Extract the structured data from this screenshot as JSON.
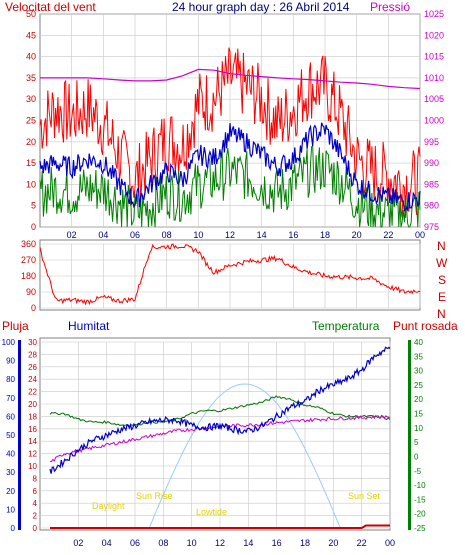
{
  "title": "24 hour graph day : 26 Abril 2014",
  "colors": {
    "wind_gust": "#ff0000",
    "wind_avg": "#0000cc",
    "wind_low": "#008000",
    "pressure": "#cc00cc",
    "direction": "#ff0000",
    "rain": "#cc0000",
    "humidity": "#0000cc",
    "temperature": "#007000",
    "dewpoint": "#cc00cc",
    "sun": "#99ccff",
    "axis_left_top": "#cc0000",
    "axis_right_top": "#cc00cc",
    "axis_right_bottom": "#008000",
    "sun_label": "#e6d000",
    "grid": "#c8c8c8"
  },
  "chart_data": [
    {
      "type": "line",
      "name": "wind-pressure",
      "title": "24 hour graph day : 26 Abril 2014",
      "ylabel": "Velocitat del vent",
      "y2label": "Pressió",
      "x_ticks": [
        "02",
        "04",
        "06",
        "08",
        "10",
        "12",
        "14",
        "16",
        "18",
        "20",
        "22",
        "00"
      ],
      "x_range_hours": [
        0,
        24
      ],
      "ylim": [
        0,
        50
      ],
      "yticks": [
        0,
        5,
        10,
        15,
        20,
        25,
        30,
        35,
        40,
        45,
        50
      ],
      "y2lim": [
        975,
        1025
      ],
      "y2ticks": [
        975,
        980,
        985,
        990,
        995,
        1000,
        1005,
        1010,
        1015,
        1020,
        1025
      ],
      "series": [
        {
          "name": "Velocitat del vent",
          "color": "#0000cc",
          "x": [
            0,
            1,
            2,
            3,
            4,
            5,
            6,
            7,
            8,
            9,
            10,
            11,
            12,
            13,
            14,
            15,
            16,
            17,
            18,
            19,
            20,
            21,
            22,
            23,
            24
          ],
          "y": [
            14,
            15,
            14,
            16,
            15,
            10,
            6,
            10,
            13,
            11,
            17,
            16,
            22,
            20,
            17,
            14,
            16,
            21,
            23,
            17,
            10,
            8,
            7,
            6,
            7
          ]
        },
        {
          "name": "Ràfega",
          "color": "#ff0000",
          "x": [
            0,
            1,
            2,
            3,
            4,
            5,
            6,
            7,
            8,
            9,
            10,
            11,
            12,
            13,
            14,
            15,
            16,
            17,
            18,
            19,
            20,
            21,
            22,
            23,
            24
          ],
          "y": [
            24,
            28,
            26,
            28,
            24,
            17,
            11,
            16,
            21,
            19,
            29,
            30,
            35,
            33,
            30,
            24,
            28,
            33,
            33,
            26,
            16,
            13,
            12,
            10,
            11
          ]
        },
        {
          "name": "Mínim",
          "color": "#008000",
          "x": [
            0,
            1,
            2,
            3,
            4,
            5,
            6,
            7,
            8,
            9,
            10,
            11,
            12,
            13,
            14,
            15,
            16,
            17,
            18,
            19,
            20,
            21,
            22,
            23,
            24
          ],
          "y": [
            8,
            9,
            8,
            9,
            9,
            6,
            3,
            5,
            8,
            7,
            10,
            11,
            13,
            12,
            10,
            8,
            10,
            13,
            14,
            11,
            6,
            4,
            3,
            3,
            4
          ]
        },
        {
          "name": "Pressió",
          "color": "#cc00cc",
          "axis": "right",
          "x": [
            0,
            1,
            2,
            3,
            4,
            5,
            6,
            7,
            8,
            9,
            10,
            11,
            12,
            13,
            14,
            15,
            16,
            17,
            18,
            19,
            20,
            21,
            22,
            23,
            24
          ],
          "y": [
            1010.0,
            1010.0,
            1010.0,
            1010.0,
            1009.8,
            1009.5,
            1009.3,
            1009.3,
            1009.5,
            1010.5,
            1012.0,
            1011.8,
            1011.0,
            1010.6,
            1010.3,
            1010.0,
            1009.8,
            1009.6,
            1009.3,
            1009.0,
            1008.8,
            1008.5,
            1008.0,
            1007.7,
            1007.5
          ]
        }
      ]
    },
    {
      "type": "line",
      "name": "wind-direction",
      "x_ticks": [
        "02",
        "04",
        "06",
        "08",
        "10",
        "12",
        "14",
        "16",
        "18",
        "20",
        "22",
        "00"
      ],
      "ylim": [
        0,
        360
      ],
      "yticks": [
        0,
        90,
        180,
        270,
        360
      ],
      "compass": [
        "N",
        "W",
        "S",
        "E",
        "N"
      ],
      "series": [
        {
          "name": "Direcció",
          "color": "#ff0000",
          "x": [
            0,
            1,
            2,
            3,
            4,
            5,
            6,
            7,
            8,
            9,
            10,
            10.5,
            11,
            12,
            13,
            14,
            15,
            16,
            17,
            18,
            19,
            20,
            21,
            22,
            23,
            24
          ],
          "y": [
            330,
            40,
            45,
            35,
            60,
            40,
            50,
            340,
            345,
            350,
            320,
            250,
            200,
            240,
            260,
            270,
            280,
            230,
            200,
            180,
            175,
            170,
            165,
            120,
            90,
            100
          ]
        }
      ]
    },
    {
      "type": "line",
      "name": "rain-humidity-temperature",
      "labels": {
        "rain": "Pluja",
        "humidity": "Humitat",
        "temperature": "Temperatura",
        "dewpoint": "Punt rosada"
      },
      "x_ticks": [
        "02",
        "04",
        "06",
        "08",
        "10",
        "12",
        "14",
        "16",
        "18",
        "20",
        "22",
        "00"
      ],
      "rain_ylim": [
        0,
        30
      ],
      "rain_ticks": [
        0,
        2,
        4,
        6,
        8,
        10,
        12,
        14,
        16,
        18,
        20,
        22,
        24,
        26,
        28,
        30
      ],
      "humidity_ylim": [
        0,
        100
      ],
      "humidity_ticks": [
        0,
        10,
        20,
        30,
        40,
        50,
        60,
        70,
        80,
        90,
        100
      ],
      "temperature_ylim": [
        -25,
        40
      ],
      "temperature_ticks": [
        -25,
        -20,
        -15,
        -10,
        -5,
        0,
        5,
        10,
        15,
        20,
        25,
        30,
        35,
        40
      ],
      "annotations": [
        "Sun Rise",
        "Sun Set",
        "Daylight",
        "Lowtide"
      ],
      "series": [
        {
          "name": "Humitat",
          "color": "#0000cc",
          "x": [
            0,
            1,
            2,
            3,
            4,
            5,
            6,
            7,
            8,
            9,
            10,
            11,
            12,
            13,
            14,
            15,
            16,
            17,
            18,
            19,
            20,
            21,
            22,
            23,
            24
          ],
          "y": [
            30,
            36,
            42,
            47,
            50,
            53,
            55,
            57,
            58,
            58,
            55,
            54,
            55,
            53,
            52,
            55,
            60,
            65,
            68,
            74,
            77,
            80,
            85,
            93,
            97
          ]
        },
        {
          "name": "Temperatura",
          "color": "#007000",
          "axis": "temperature",
          "x": [
            0,
            1,
            2,
            3,
            4,
            5,
            6,
            7,
            8,
            9,
            10,
            11,
            12,
            13,
            14,
            15,
            16,
            17,
            18,
            19,
            20,
            21,
            22,
            23,
            24
          ],
          "y": [
            15,
            15,
            13,
            12,
            12,
            11,
            11,
            12,
            12,
            13,
            15,
            16,
            16,
            17,
            18,
            19,
            21,
            20,
            18,
            17,
            15,
            14,
            14,
            14,
            13
          ]
        },
        {
          "name": "Punt rosada",
          "color": "#cc00cc",
          "axis": "temperature",
          "x": [
            0,
            1,
            2,
            3,
            4,
            5,
            6,
            7,
            8,
            9,
            10,
            11,
            12,
            13,
            14,
            15,
            16,
            17,
            18,
            19,
            20,
            21,
            22,
            23,
            24
          ],
          "y": [
            -2,
            1,
            2,
            3,
            4,
            5,
            6,
            7,
            8,
            9,
            9.5,
            10,
            10.5,
            10.8,
            11,
            11.3,
            11.8,
            12.2,
            12.6,
            13,
            13.2,
            13.4,
            13.6,
            13.8,
            14
          ]
        },
        {
          "name": "Pluja",
          "color": "#cc0000",
          "axis": "rain",
          "x": [
            0,
            1,
            2,
            3,
            4,
            5,
            6,
            7,
            8,
            9,
            10,
            11,
            12,
            13,
            14,
            15,
            16,
            17,
            18,
            19,
            20,
            21,
            22,
            22.3,
            23,
            24
          ],
          "y": [
            0,
            0,
            0,
            0,
            0,
            0,
            0,
            0,
            0,
            0,
            0,
            0,
            0,
            0,
            0,
            0,
            0,
            0,
            0,
            0,
            0,
            0,
            0,
            0.4,
            0.4,
            0.4
          ]
        }
      ]
    }
  ]
}
